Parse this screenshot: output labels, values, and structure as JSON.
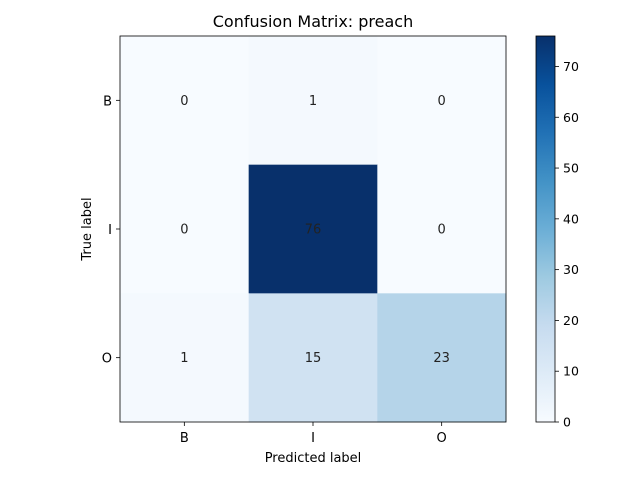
{
  "chart_data": {
    "type": "heatmap",
    "title": "Confusion Matrix: preach",
    "xlabel": "Predicted label",
    "ylabel": "True label",
    "x_categories": [
      "B",
      "I",
      "O"
    ],
    "y_categories": [
      "B",
      "I",
      "O"
    ],
    "values": [
      [
        0,
        1,
        0
      ],
      [
        0,
        76,
        0
      ],
      [
        1,
        15,
        23
      ]
    ],
    "colormap": "Blues",
    "colorbar": {
      "min": 0,
      "max": 76,
      "ticks": [
        0,
        10,
        20,
        30,
        40,
        50,
        60,
        70
      ]
    },
    "text_colors": {
      "light": "#08306b",
      "dark": "#f7fbff"
    },
    "grid": false
  }
}
